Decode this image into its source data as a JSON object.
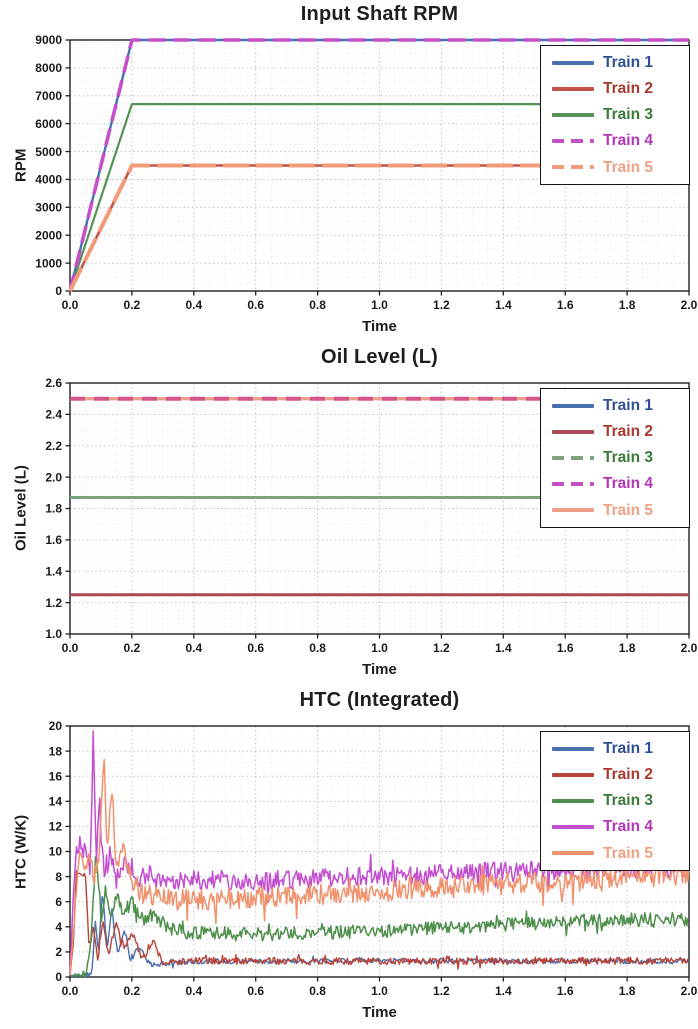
{
  "page": {
    "background": "#ffffff"
  },
  "styles": {
    "axis_color": "#1f1f1f",
    "grid_major_color": "#c6c6c6",
    "grid_minor_color": "#e5e5e5",
    "title_color": "#1e1e1e"
  },
  "chart_data": [
    {
      "type": "line",
      "title": "Input Shaft RPM",
      "xlabel": "Time",
      "ylabel": "RPM",
      "xlim": [
        0,
        2
      ],
      "ylim": [
        0,
        9000
      ],
      "grid": true,
      "legend_position": "upper right",
      "xticks": [
        0,
        0.2,
        0.4,
        0.6,
        0.8,
        1.0,
        1.2,
        1.4,
        1.6,
        1.8,
        2.0
      ],
      "xtick_labels": [
        "0.0",
        "0.2",
        "0.4",
        "0.6",
        "0.8",
        "1.0",
        "1.2",
        "1.4",
        "1.6",
        "1.8",
        "2.0"
      ],
      "yticks": [
        0,
        1000,
        2000,
        3000,
        4000,
        5000,
        6000,
        7000,
        8000,
        9000
      ],
      "ytick_labels": [
        "0",
        "1000",
        "2000",
        "3000",
        "4000",
        "5000",
        "6000",
        "7000",
        "8000",
        "9000"
      ],
      "minor_x": 0.05,
      "minor_y": 250,
      "legend": [
        {
          "label": "Train 1",
          "color": "#4a6fae",
          "text_color": "#2f4f92",
          "dash": false
        },
        {
          "label": "Train 2",
          "color": "#c35248",
          "text_color": "#ab382e",
          "dash": false
        },
        {
          "label": "Train 3",
          "color": "#569155",
          "text_color": "#3c7a3c",
          "dash": false
        },
        {
          "label": "Train 4",
          "color": "#c44fc9",
          "text_color": "#b335b8",
          "dash": true
        },
        {
          "label": "Train 5",
          "color": "#f29b78",
          "text_color": "#efa183",
          "dash": true
        }
      ],
      "series": [
        {
          "name": "Train 1",
          "color": "#4a6fae",
          "width": 2.4,
          "points": [
            [
              0,
              0
            ],
            [
              0.2,
              9000
            ],
            [
              2,
              9000
            ]
          ]
        },
        {
          "name": "Train 2",
          "color": "#c35248",
          "width": 2.6,
          "points": [
            [
              0,
              0
            ],
            [
              0.2,
              4500
            ],
            [
              2,
              4500
            ]
          ]
        },
        {
          "name": "Train 3",
          "color": "#569155",
          "width": 2.2,
          "points": [
            [
              0,
              0
            ],
            [
              0.2,
              6700
            ],
            [
              2,
              6700
            ]
          ]
        },
        {
          "name": "Train 4",
          "color": "#c44fc9",
          "width": 3.6,
          "dash": "17 8",
          "points": [
            [
              0,
              0
            ],
            [
              0.2,
              9000
            ],
            [
              2,
              9000
            ]
          ]
        },
        {
          "name": "Train 5",
          "color": "#f29b78",
          "width": 4.0,
          "dash": "26 7",
          "points": [
            [
              0,
              0
            ],
            [
              0.2,
              4500
            ],
            [
              2,
              4500
            ]
          ]
        }
      ]
    },
    {
      "type": "line",
      "title": "Oil Level (L)",
      "xlabel": "Time",
      "ylabel": "Oil Level (L)",
      "xlim": [
        0,
        2
      ],
      "ylim": [
        1.0,
        2.6
      ],
      "grid": true,
      "legend_position": "upper right",
      "xticks": [
        0,
        0.2,
        0.4,
        0.6,
        0.8,
        1.0,
        1.2,
        1.4,
        1.6,
        1.8,
        2.0
      ],
      "xtick_labels": [
        "0.0",
        "0.2",
        "0.4",
        "0.6",
        "0.8",
        "1.0",
        "1.2",
        "1.4",
        "1.6",
        "1.8",
        "2.0"
      ],
      "yticks": [
        1.0,
        1.2,
        1.4,
        1.6,
        1.8,
        2.0,
        2.2,
        2.4,
        2.6
      ],
      "ytick_labels": [
        "1.0",
        "1.2",
        "1.4",
        "1.6",
        "1.8",
        "2.0",
        "2.2",
        "2.4",
        "2.6"
      ],
      "minor_x": 0.05,
      "minor_y": 0.05,
      "legend": [
        {
          "label": "Train 1",
          "color": "#4a6fae",
          "text_color": "#2f4f92",
          "dash": false
        },
        {
          "label": "Train 2",
          "color": "#a84a54",
          "text_color": "#ab382e",
          "dash": false
        },
        {
          "label": "Train 3",
          "color": "#7ca37c",
          "text_color": "#3c7a3c",
          "dash": true
        },
        {
          "label": "Train 4",
          "color": "#c44fc9",
          "text_color": "#b335b8",
          "dash": true
        },
        {
          "label": "Train 5",
          "color": "#eda089",
          "text_color": "#efa183",
          "dash": false
        }
      ],
      "series": [
        {
          "name": "Train 1",
          "color": "#4a6fae",
          "width": 2.2,
          "points": [
            [
              0,
              2.5
            ],
            [
              2,
              2.5
            ]
          ]
        },
        {
          "name": "Train 2",
          "color": "#a84a54",
          "width": 3.0,
          "points": [
            [
              0,
              1.25
            ],
            [
              2,
              1.25
            ]
          ]
        },
        {
          "name": "Train 3",
          "color": "#7ca37c",
          "width": 3.0,
          "points": [
            [
              0,
              1.87
            ],
            [
              2,
              1.87
            ]
          ]
        },
        {
          "name": "Train 5",
          "color": "#eda089",
          "width": 3.4,
          "points": [
            [
              0,
              2.5
            ],
            [
              2,
              2.5
            ]
          ]
        },
        {
          "name": "Train 4",
          "color": "#d5548a",
          "width": 4.0,
          "dash": "15 9",
          "points": [
            [
              0,
              2.5
            ],
            [
              2,
              2.5
            ]
          ]
        }
      ]
    },
    {
      "type": "line",
      "title": "HTC (Integrated)",
      "xlabel": "Time",
      "ylabel": "HTC (W/K)",
      "xlim": [
        0,
        2
      ],
      "ylim": [
        0,
        20
      ],
      "grid": true,
      "legend_position": "upper right",
      "xticks": [
        0,
        0.2,
        0.4,
        0.6,
        0.8,
        1.0,
        1.2,
        1.4,
        1.6,
        1.8,
        2.0
      ],
      "xtick_labels": [
        "0.0",
        "0.2",
        "0.4",
        "0.6",
        "0.8",
        "1.0",
        "1.2",
        "1.4",
        "1.6",
        "1.8",
        "2.0"
      ],
      "yticks": [
        0,
        2,
        4,
        6,
        8,
        10,
        12,
        14,
        16,
        18,
        20
      ],
      "ytick_labels": [
        "0",
        "2",
        "4",
        "6",
        "8",
        "10",
        "12",
        "14",
        "16",
        "18",
        "20"
      ],
      "minor_x": 0.05,
      "minor_y": 1,
      "legend": [
        {
          "label": "Train 1",
          "color": "#4a6fae",
          "text_color": "#2f4f92",
          "dash": false
        },
        {
          "label": "Train 2",
          "color": "#b84338",
          "text_color": "#ab382e",
          "dash": false
        },
        {
          "label": "Train 3",
          "color": "#4e8f4c",
          "text_color": "#3c7a3c",
          "dash": false
        },
        {
          "label": "Train 4",
          "color": "#c24fd0",
          "text_color": "#b335b8",
          "dash": false
        },
        {
          "label": "Train 5",
          "color": "#f0926e",
          "text_color": "#efa183",
          "dash": false
        }
      ],
      "series": [
        {
          "name": "Train 1",
          "color": "#4a6fae",
          "width": 1.4,
          "seed": 3,
          "noise": 0.2,
          "anchors": [
            [
              0,
              0.1
            ],
            [
              0.07,
              0.15
            ],
            [
              0.082,
              4.5
            ],
            [
              0.092,
              1.8
            ],
            [
              0.105,
              6.8
            ],
            [
              0.12,
              2.2
            ],
            [
              0.135,
              5.4
            ],
            [
              0.155,
              1.6
            ],
            [
              0.175,
              3.8
            ],
            [
              0.195,
              1.4
            ],
            [
              0.22,
              2.4
            ],
            [
              0.26,
              1.0
            ],
            [
              0.32,
              1.1
            ],
            [
              0.5,
              1.25
            ],
            [
              1.0,
              1.3
            ],
            [
              2,
              1.25
            ]
          ]
        },
        {
          "name": "Train 2",
          "color": "#b84338",
          "width": 1.4,
          "seed": 7,
          "noise": 0.28,
          "anchors": [
            [
              0,
              0.1
            ],
            [
              0.012,
              3
            ],
            [
              0.02,
              8.4
            ],
            [
              0.05,
              8.2
            ],
            [
              0.062,
              2
            ],
            [
              0.075,
              4.2
            ],
            [
              0.09,
              1.3
            ],
            [
              0.105,
              4.6
            ],
            [
              0.125,
              1.6
            ],
            [
              0.15,
              4.3
            ],
            [
              0.175,
              2.2
            ],
            [
              0.2,
              3.6
            ],
            [
              0.23,
              1.6
            ],
            [
              0.27,
              2.8
            ],
            [
              0.3,
              1.1
            ],
            [
              0.4,
              1.3
            ],
            [
              1.0,
              1.25
            ],
            [
              2,
              1.3
            ]
          ]
        },
        {
          "name": "Train 3",
          "color": "#4e8f4c",
          "width": 1.5,
          "seed": 13,
          "noise": 0.55,
          "anchors": [
            [
              0,
              0.15
            ],
            [
              0.05,
              0.2
            ],
            [
              0.065,
              2.5
            ],
            [
              0.085,
              10.2
            ],
            [
              0.1,
              4.8
            ],
            [
              0.115,
              7
            ],
            [
              0.13,
              4.6
            ],
            [
              0.15,
              6.6
            ],
            [
              0.17,
              5
            ],
            [
              0.2,
              6
            ],
            [
              0.23,
              4.6
            ],
            [
              0.27,
              4.9
            ],
            [
              0.32,
              3.8
            ],
            [
              0.4,
              3.5
            ],
            [
              0.6,
              3.4
            ],
            [
              0.9,
              3.6
            ],
            [
              1.2,
              3.9
            ],
            [
              1.5,
              4.3
            ],
            [
              1.8,
              4.6
            ],
            [
              2,
              4.6
            ]
          ]
        },
        {
          "name": "Train 4",
          "color": "#c24fd0",
          "width": 1.5,
          "seed": 21,
          "noise": 0.8,
          "anchors": [
            [
              0,
              0.3
            ],
            [
              0.01,
              6
            ],
            [
              0.02,
              10.3
            ],
            [
              0.055,
              10.1
            ],
            [
              0.065,
              8.2
            ],
            [
              0.075,
              19
            ],
            [
              0.085,
              9.5
            ],
            [
              0.095,
              14.6
            ],
            [
              0.11,
              8.3
            ],
            [
              0.13,
              10
            ],
            [
              0.15,
              7.8
            ],
            [
              0.18,
              9
            ],
            [
              0.21,
              7.4
            ],
            [
              0.25,
              8.2
            ],
            [
              0.3,
              7.5
            ],
            [
              0.4,
              7.8
            ],
            [
              0.6,
              7.6
            ],
            [
              0.8,
              7.9
            ],
            [
              1.0,
              8.0
            ],
            [
              1.3,
              8.3
            ],
            [
              1.6,
              8.5
            ],
            [
              2,
              8.8
            ]
          ]
        },
        {
          "name": "Train 5",
          "color": "#f0926e",
          "width": 1.5,
          "seed": 29,
          "noise": 0.85,
          "anchors": [
            [
              0,
              0.2
            ],
            [
              0.015,
              5
            ],
            [
              0.03,
              9.4
            ],
            [
              0.06,
              9.2
            ],
            [
              0.08,
              8.2
            ],
            [
              0.095,
              9.8
            ],
            [
              0.11,
              18.6
            ],
            [
              0.12,
              9.5
            ],
            [
              0.135,
              15.1
            ],
            [
              0.15,
              8.8
            ],
            [
              0.17,
              10.2
            ],
            [
              0.2,
              7.6
            ],
            [
              0.24,
              6.6
            ],
            [
              0.3,
              6.2
            ],
            [
              0.4,
              6.1
            ],
            [
              0.6,
              6.3
            ],
            [
              0.9,
              6.7
            ],
            [
              1.2,
              7.1
            ],
            [
              1.5,
              7.5
            ],
            [
              1.8,
              7.9
            ],
            [
              2,
              8.2
            ]
          ]
        }
      ]
    }
  ]
}
